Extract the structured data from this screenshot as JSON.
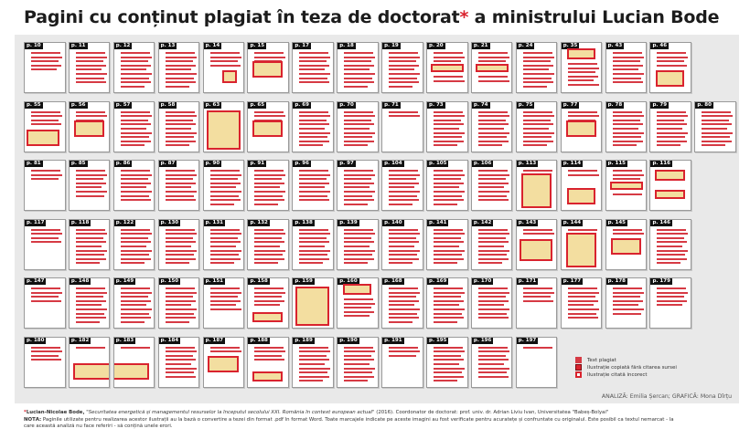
{
  "title": {
    "prefix": "Pagini cu conținut plagiat în teza de doctorat",
    "star": "*",
    "suffix": " a ministrului Lucian Bode"
  },
  "colors": {
    "plagiarism_red": "#d63a44",
    "illustration_outline": "#d9232e",
    "illustration_fill": "#f3dea0",
    "panel_bg": "#e9e9e9"
  },
  "rows": [
    [
      {
        "label": "p. 10",
        "lines": 5
      },
      {
        "label": "p. 11",
        "lines": 8
      },
      {
        "label": "p. 12",
        "lines": 9
      },
      {
        "label": "p. 13",
        "lines": 10
      },
      {
        "label": "p. 14",
        "lines": 6,
        "fig": "small-bottom-right"
      },
      {
        "label": "p. 15",
        "lines": 3,
        "fig": "mid"
      },
      {
        "label": "p. 17",
        "lines": 8
      },
      {
        "label": "p. 18",
        "lines": 9
      },
      {
        "label": "p. 19",
        "lines": 9
      },
      {
        "label": "p. 20",
        "lines": 5,
        "fig": "wide-mid"
      },
      {
        "label": "p. 21",
        "lines": 5,
        "fig": "wide-mid"
      },
      {
        "label": "p. 24",
        "lines": 9
      },
      {
        "label": "p. 35",
        "lines": 6,
        "fig": "top"
      },
      {
        "label": "p. 43",
        "lines": 8
      },
      {
        "label": "p. 46",
        "lines": 4,
        "fig": "lower"
      }
    ],
    [
      {
        "label": "p. 55",
        "lines": 4,
        "fig": "lower-left"
      },
      {
        "label": "p. 56",
        "lines": 4,
        "fig": "mid"
      },
      {
        "label": "p. 57",
        "lines": 9
      },
      {
        "label": "p. 58",
        "lines": 9
      },
      {
        "label": "p. 63",
        "lines": 0,
        "fig": "full"
      },
      {
        "label": "p. 65",
        "lines": 3,
        "fig": "mid"
      },
      {
        "label": "p. 69",
        "lines": 9
      },
      {
        "label": "p. 70",
        "lines": 9
      },
      {
        "label": "p. 71",
        "lines": 2
      },
      {
        "label": "p. 73",
        "lines": 9
      },
      {
        "label": "p. 74",
        "lines": 10
      },
      {
        "label": "p. 75",
        "lines": 9
      },
      {
        "label": "p. 77",
        "lines": 3,
        "fig": "mid"
      },
      {
        "label": "p. 78",
        "lines": 9
      },
      {
        "label": "p. 79",
        "lines": 9
      },
      {
        "label": "p. 80",
        "lines": 9
      }
    ],
    [
      {
        "label": "p. 81",
        "lines": 3
      },
      {
        "label": "p. 85",
        "lines": 7
      },
      {
        "label": "p. 86",
        "lines": 8
      },
      {
        "label": "p. 87",
        "lines": 8
      },
      {
        "label": "p. 90",
        "lines": 9
      },
      {
        "label": "p. 91",
        "lines": 9
      },
      {
        "label": "p. 96",
        "lines": 8
      },
      {
        "label": "p. 97",
        "lines": 9
      },
      {
        "label": "p. 104",
        "lines": 9
      },
      {
        "label": "p. 105",
        "lines": 9
      },
      {
        "label": "p. 106",
        "lines": 8
      },
      {
        "label": "p. 113",
        "lines": 1,
        "fig": "tall"
      },
      {
        "label": "p. 114",
        "lines": 2,
        "fig": "lower"
      },
      {
        "label": "p. 115",
        "lines": 4,
        "fig": "wide-mid"
      },
      {
        "label": "p. 116",
        "lines": 2,
        "fig": "two"
      }
    ],
    [
      {
        "label": "p. 117",
        "lines": 4
      },
      {
        "label": "p. 118",
        "lines": 9
      },
      {
        "label": "p. 122",
        "lines": 9
      },
      {
        "label": "p. 130",
        "lines": 9
      },
      {
        "label": "p. 131",
        "lines": 9
      },
      {
        "label": "p. 132",
        "lines": 9
      },
      {
        "label": "p. 138",
        "lines": 9
      },
      {
        "label": "p. 139",
        "lines": 9
      },
      {
        "label": "p. 140",
        "lines": 9
      },
      {
        "label": "p. 141",
        "lines": 9
      },
      {
        "label": "p. 142",
        "lines": 9
      },
      {
        "label": "p. 143",
        "lines": 2,
        "fig": "lower-map"
      },
      {
        "label": "p. 144",
        "lines": 1,
        "fig": "tall"
      },
      {
        "label": "p. 145",
        "lines": 2,
        "fig": "mid"
      },
      {
        "label": "p. 146",
        "lines": 9
      }
    ],
    [
      {
        "label": "p. 147",
        "lines": 4
      },
      {
        "label": "p. 148",
        "lines": 9
      },
      {
        "label": "p. 149",
        "lines": 9
      },
      {
        "label": "p. 150",
        "lines": 9
      },
      {
        "label": "p. 151",
        "lines": 6
      },
      {
        "label": "p. 158",
        "lines": 5,
        "fig": "bottom"
      },
      {
        "label": "p. 159",
        "lines": 0,
        "fig": "full"
      },
      {
        "label": "p. 160",
        "lines": 5,
        "fig": "top"
      },
      {
        "label": "p. 168",
        "lines": 9
      },
      {
        "label": "p. 169",
        "lines": 9
      },
      {
        "label": "p. 170",
        "lines": 8
      },
      {
        "label": "p. 171",
        "lines": 4
      },
      {
        "label": "p. 177",
        "lines": 8
      },
      {
        "label": "p. 178",
        "lines": 7
      },
      {
        "label": "p. 179",
        "lines": 5
      }
    ],
    [
      {
        "label": "p. 180",
        "lines": 4
      },
      {
        "label": "p. 182",
        "lines": 1,
        "fig": "span-left"
      },
      {
        "label": "p. 183",
        "lines": 1,
        "fig": "span-right"
      },
      {
        "label": "p. 184",
        "lines": 8
      },
      {
        "label": "p. 187",
        "lines": 2,
        "fig": "photo"
      },
      {
        "label": "p. 188",
        "lines": 4,
        "fig": "bottom"
      },
      {
        "label": "p. 189",
        "lines": 9
      },
      {
        "label": "p. 190",
        "lines": 9
      },
      {
        "label": "p. 191",
        "lines": 3
      },
      {
        "label": "p. 195",
        "lines": 9
      },
      {
        "label": "p. 196",
        "lines": 8
      },
      {
        "label": "p. 197",
        "lines": 1
      }
    ]
  ],
  "legend": [
    {
      "key": "text",
      "label": "Text plagiat"
    },
    {
      "key": "copied",
      "label": "Ilustrație copiată fără citarea sursei"
    },
    {
      "key": "wrong",
      "label": "Ilustrație citată incorect"
    }
  ],
  "credit": "ANALIZĂ: Emilia Șercan; GRAFICĂ: Mona Dîrțu",
  "footnote": {
    "author": "Lucian-Nicolae Bode,",
    "work": "\"Securitatea energetică și managementul resurselor la începutul secolului XXI. România în context european actual\"",
    "details": " (2016). Coordonator de doctorat: prof. univ. dr. Adrian Liviu Ivan, Universitatea \"Babeș-Bolyai\"",
    "note_label": "NOTĂ:",
    "note_1": " Paginile utilizate pentru realizarea acestor ilustrații au la bază o convertire a tezei din format .pdf în format Word. Toate marcajele indicate pe aceste imagini au fost verificate pentru acuratețe și confruntate cu originalul. Este posibil ca textul nemarcat - la",
    "note_2": "care această analiză nu face referiri - să conțină unele erori."
  }
}
